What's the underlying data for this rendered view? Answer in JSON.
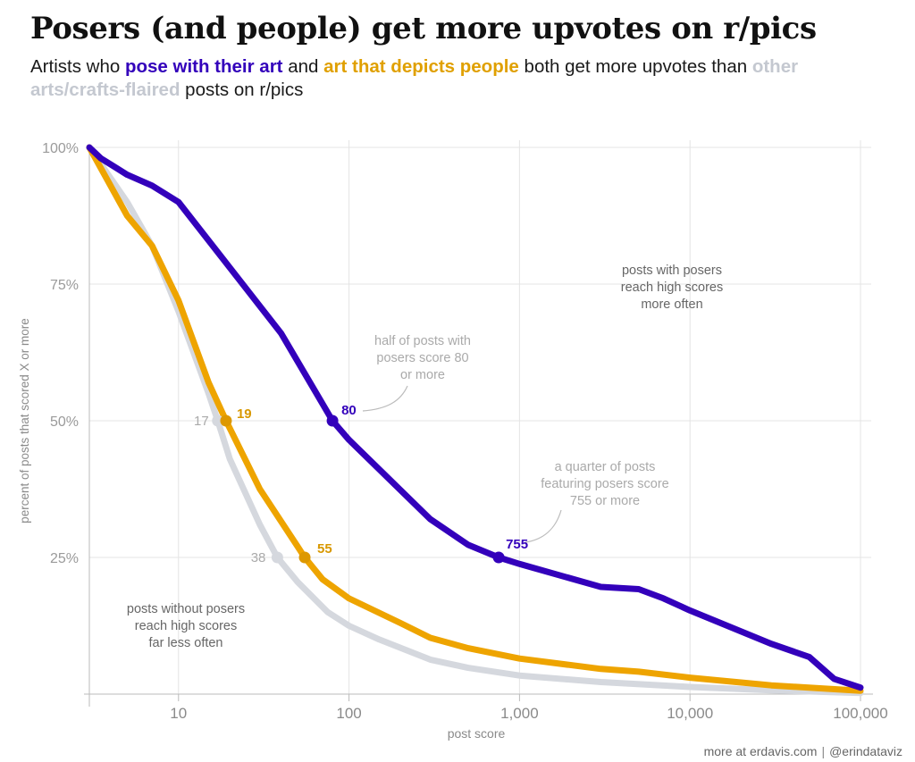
{
  "header": {
    "title": "Posers (and people) get more upvotes on r/pics",
    "subtitle": {
      "p1": "Artists who ",
      "h1": "pose with their art",
      "p2": " and ",
      "h2": "art that depicts people",
      "p3": " both get more upvotes than ",
      "h3": "other arts/crafts-flaired",
      "p4": " posts on r/pics"
    }
  },
  "footer": {
    "left": "more at erdavis.com",
    "sep": "|",
    "right": "@erindataviz"
  },
  "chart_data": {
    "type": "line",
    "xlabel": "post score",
    "ylabel": "percent of posts that scored X or more",
    "xscale": "log",
    "xlim": [
      3,
      100000
    ],
    "ylim": [
      0,
      100
    ],
    "xticks": [
      10,
      100,
      1000,
      10000,
      100000
    ],
    "xtick_labels": [
      "10",
      "100",
      "1,000",
      "10,000",
      "100,000"
    ],
    "yticks": [
      25,
      50,
      75,
      100
    ],
    "ytick_labels": [
      "25%",
      "50%",
      "75%",
      "100%"
    ],
    "grid": true,
    "legend": "none (colors explained in subtitle)",
    "series": [
      {
        "key": "other",
        "color": "#d5d8de",
        "x": [
          3,
          5,
          7,
          10,
          15,
          17,
          20,
          30,
          38,
          50,
          75,
          100,
          150,
          300,
          500,
          1000,
          3000,
          10000,
          30000,
          100000
        ],
        "y": [
          100,
          90,
          82,
          70,
          55,
          50,
          43,
          31,
          25,
          20.5,
          15,
          12.5,
          10,
          6.3,
          4.8,
          3.4,
          2.2,
          1.3,
          0.7,
          0.2
        ],
        "points": [
          {
            "x": 17,
            "y": 50,
            "label": "17"
          },
          {
            "x": 38,
            "y": 25,
            "label": "38"
          }
        ]
      },
      {
        "key": "people",
        "color": "#eea400",
        "x": [
          3,
          5,
          7,
          10,
          15,
          19,
          30,
          50,
          55,
          70,
          100,
          200,
          300,
          500,
          1000,
          3000,
          5000,
          10000,
          30000,
          100000
        ],
        "y": [
          100,
          87.5,
          82,
          72,
          57,
          50,
          37.5,
          27,
          25,
          21,
          17.5,
          13,
          10.3,
          8.4,
          6.5,
          4.6,
          4.1,
          3,
          1.6,
          0.6
        ],
        "points": [
          {
            "x": 19,
            "y": 50,
            "label": "19"
          },
          {
            "x": 55,
            "y": 25,
            "label": "55"
          }
        ]
      },
      {
        "key": "posers",
        "color": "#3300bb",
        "x": [
          3,
          3.5,
          5,
          7,
          10,
          20,
          40,
          80,
          100,
          300,
          500,
          755,
          1000,
          3000,
          5000,
          7000,
          10000,
          30000,
          50000,
          70000,
          100000
        ],
        "y": [
          100,
          98,
          95,
          93,
          90,
          78,
          66,
          50,
          46.5,
          32,
          27.3,
          25,
          23.8,
          19.6,
          19.2,
          17.5,
          15.3,
          9.2,
          6.8,
          2.8,
          1.2
        ],
        "points": [
          {
            "x": 80,
            "y": 50,
            "label": "80"
          },
          {
            "x": 755,
            "y": 25,
            "label": "755"
          }
        ]
      }
    ],
    "annotations": [
      {
        "lines": [
          "posts with posers",
          "reach high scores",
          "more often"
        ]
      },
      {
        "lines": [
          "half of posts with",
          "posers score 80",
          "or more"
        ]
      },
      {
        "lines": [
          "a quarter of posts",
          "featuring posers score",
          "755 or more"
        ]
      },
      {
        "lines": [
          "posts without posers",
          "reach high scores",
          "far less often"
        ]
      }
    ]
  }
}
